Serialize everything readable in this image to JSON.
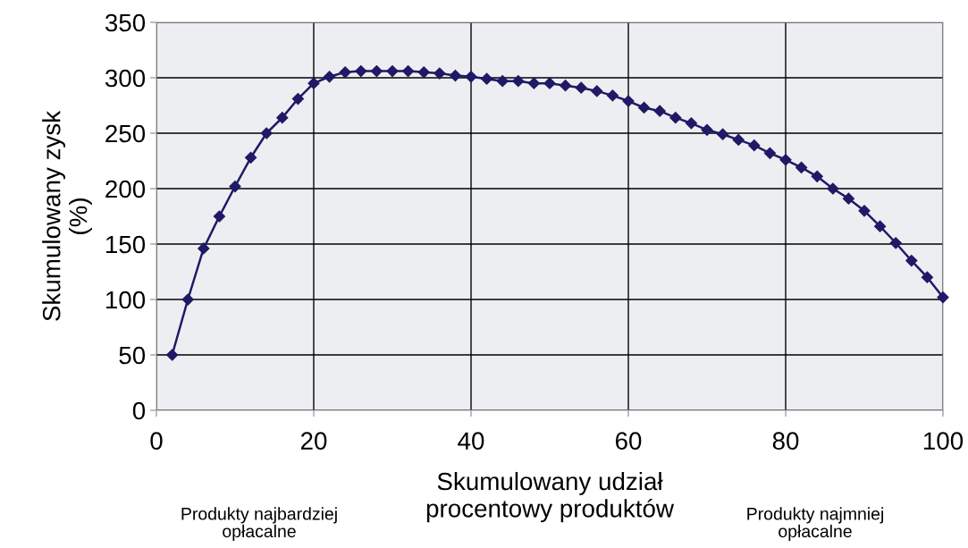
{
  "chart_data": {
    "type": "line",
    "xlabel": "Skumulowany udział\nprocentowy produktów",
    "ylabel": "Skumulowany zysk\n(%)",
    "x": [
      2,
      4,
      6,
      8,
      10,
      12,
      14,
      16,
      18,
      20,
      22,
      24,
      26,
      28,
      30,
      32,
      34,
      36,
      38,
      40,
      42,
      44,
      46,
      48,
      50,
      52,
      54,
      56,
      58,
      60,
      62,
      64,
      66,
      68,
      70,
      72,
      74,
      76,
      78,
      80,
      82,
      84,
      86,
      88,
      90,
      92,
      94,
      96,
      98,
      100
    ],
    "series": [
      {
        "color": "#1f1a66",
        "values": [
          50,
          100,
          146,
          175,
          202,
          228,
          250,
          264,
          281,
          295,
          301,
          305,
          306,
          306,
          306,
          306,
          305,
          304,
          302,
          301,
          299,
          297,
          297,
          295,
          295,
          293,
          291,
          288,
          284,
          279,
          273,
          270,
          264,
          259,
          253,
          249,
          244,
          239,
          232,
          226,
          219,
          211,
          200,
          191,
          180,
          166,
          151,
          135,
          120,
          102
        ]
      }
    ],
    "xlim": [
      0,
      100
    ],
    "xticks": [
      0,
      20,
      40,
      60,
      80,
      100
    ],
    "ylim": [
      0,
      350
    ],
    "yticks": [
      0,
      50,
      100,
      150,
      200,
      250,
      300,
      350
    ],
    "grid": true,
    "marker": "diamond",
    "line_style": "solid",
    "annotations": [
      "Produkty najbardziej\nopłacalne",
      "Produkty najmniej\nopłacalne"
    ]
  }
}
